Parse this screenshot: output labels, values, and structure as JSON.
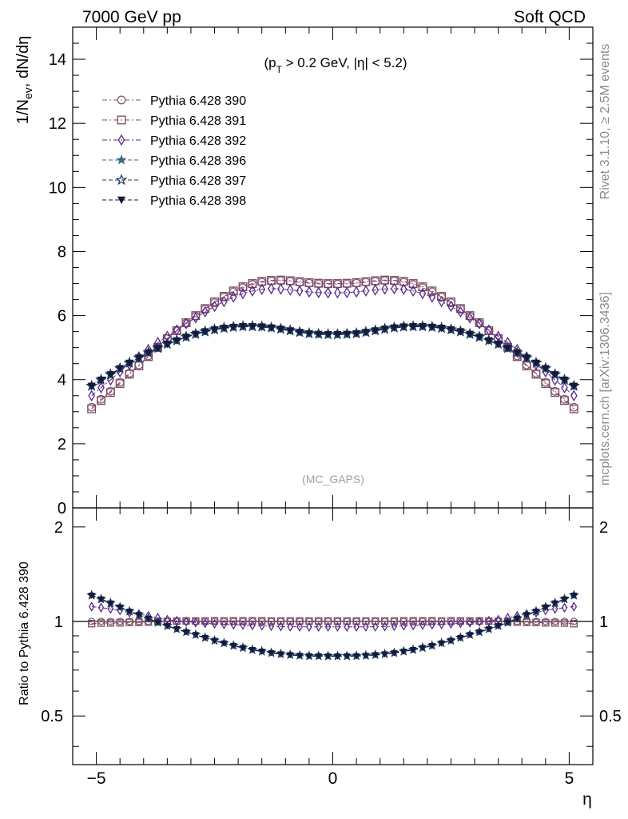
{
  "header": {
    "left": "7000 GeV pp",
    "right": "Soft QCD"
  },
  "side_labels": {
    "rivet": "Rivet 3.1.10, ≥ 2.5M events",
    "mcplots": "mcplots.cern.ch [arXiv:1306.3436]"
  },
  "chart_data": {
    "type": "scatter",
    "cut_label": "(p_T > 0.2 GeV, |η| < 5.2)",
    "watermark": "(MC_GAPS)",
    "xlabel": "η",
    "main": {
      "ylabel": "1/N_ev, dN/dη",
      "xlim": [
        -5.5,
        5.5
      ],
      "ylim": [
        0,
        15
      ],
      "yticks": [
        0,
        2,
        4,
        6,
        8,
        10,
        12,
        14
      ],
      "ytick_labels": [
        "0",
        "2",
        "4",
        "6",
        "8",
        "10",
        "12",
        "14"
      ]
    },
    "ratio": {
      "ylabel": "Ratio to Pythia 6.428 390",
      "ylim": [
        0.35,
        2.3
      ],
      "log_scale": true,
      "yticks": [
        0.5,
        1,
        2
      ],
      "ytick_labels": [
        "0.5",
        "1",
        "2"
      ]
    },
    "xticks": [
      -5,
      0,
      5
    ],
    "xtick_labels": [
      "−5",
      "0",
      "5"
    ],
    "legend_position": "top-left",
    "x": [
      -5.1,
      -4.9,
      -4.7,
      -4.5,
      -4.3,
      -4.1,
      -3.9,
      -3.7,
      -3.5,
      -3.3,
      -3.1,
      -2.9,
      -2.7,
      -2.5,
      -2.3,
      -2.1,
      -1.9,
      -1.7,
      -1.5,
      -1.3,
      -1.1,
      -0.9,
      -0.7,
      -0.5,
      -0.3,
      -0.1,
      0.1,
      0.3,
      0.5,
      0.7,
      0.9,
      1.1,
      1.3,
      1.5,
      1.7,
      1.9,
      2.1,
      2.3,
      2.5,
      2.7,
      2.9,
      3.1,
      3.3,
      3.5,
      3.7,
      3.9,
      4.1,
      4.3,
      4.5,
      4.7,
      4.9,
      5.1
    ],
    "series": [
      {
        "name": "Pythia 6.428 390",
        "color": "#8a5a78",
        "marker": "circle-open",
        "line": "dash-dot",
        "values": [
          3.14,
          3.39,
          3.64,
          3.92,
          4.2,
          4.46,
          4.74,
          5.02,
          5.28,
          5.52,
          5.76,
          5.98,
          6.2,
          6.4,
          6.58,
          6.74,
          6.87,
          6.97,
          7.04,
          7.08,
          7.09,
          7.07,
          7.04,
          7.01,
          6.99,
          6.98,
          6.98,
          6.99,
          7.01,
          7.04,
          7.07,
          7.09,
          7.08,
          7.04,
          6.97,
          6.87,
          6.74,
          6.58,
          6.4,
          6.2,
          5.98,
          5.76,
          5.52,
          5.28,
          5.02,
          4.74,
          4.46,
          4.2,
          3.92,
          3.64,
          3.39,
          3.14
        ]
      },
      {
        "name": "Pythia 6.428 391",
        "color": "#7b4a62",
        "marker": "square-open",
        "line": "dash-dot",
        "values": [
          3.09,
          3.35,
          3.6,
          3.88,
          4.17,
          4.43,
          4.72,
          5.01,
          5.28,
          5.53,
          5.78,
          6.0,
          6.22,
          6.43,
          6.6,
          6.77,
          6.9,
          7.0,
          7.07,
          7.1,
          7.11,
          7.09,
          7.06,
          7.03,
          7.01,
          7.0,
          7.0,
          7.01,
          7.03,
          7.06,
          7.09,
          7.11,
          7.1,
          7.07,
          7.0,
          6.9,
          6.77,
          6.6,
          6.43,
          6.22,
          6.0,
          5.78,
          5.53,
          5.28,
          5.01,
          4.72,
          4.43,
          4.17,
          3.88,
          3.6,
          3.35,
          3.09
        ]
      },
      {
        "name": "Pythia 6.428 392",
        "color": "#5a2a8a",
        "marker": "diamond-open",
        "line": "dash-dot",
        "values": [
          3.5,
          3.75,
          3.99,
          4.25,
          4.48,
          4.71,
          4.94,
          5.16,
          5.35,
          5.55,
          5.75,
          5.93,
          6.12,
          6.29,
          6.44,
          6.58,
          6.69,
          6.77,
          6.82,
          6.84,
          6.83,
          6.8,
          6.77,
          6.74,
          6.72,
          6.71,
          6.71,
          6.72,
          6.74,
          6.77,
          6.8,
          6.83,
          6.84,
          6.82,
          6.77,
          6.69,
          6.58,
          6.44,
          6.29,
          6.12,
          5.93,
          5.75,
          5.55,
          5.35,
          5.16,
          4.94,
          4.71,
          4.48,
          4.25,
          3.99,
          3.75,
          3.5
        ]
      },
      {
        "name": "Pythia 6.428 396",
        "color": "#3a6a80",
        "marker": "star-filled",
        "line": "dash",
        "values": [
          3.79,
          3.98,
          4.15,
          4.34,
          4.51,
          4.67,
          4.83,
          4.97,
          5.1,
          5.21,
          5.32,
          5.41,
          5.49,
          5.55,
          5.6,
          5.63,
          5.65,
          5.65,
          5.64,
          5.61,
          5.57,
          5.52,
          5.47,
          5.43,
          5.41,
          5.4,
          5.4,
          5.41,
          5.43,
          5.47,
          5.52,
          5.57,
          5.61,
          5.64,
          5.65,
          5.65,
          5.63,
          5.6,
          5.55,
          5.49,
          5.41,
          5.32,
          5.21,
          5.1,
          4.97,
          4.83,
          4.67,
          4.51,
          4.34,
          4.15,
          3.98,
          3.79
        ]
      },
      {
        "name": "Pythia 6.428 397",
        "color": "#1e3a5f",
        "marker": "star-open",
        "line": "dash",
        "values": [
          3.81,
          4.0,
          4.17,
          4.36,
          4.53,
          4.69,
          4.85,
          4.99,
          5.12,
          5.23,
          5.34,
          5.43,
          5.51,
          5.57,
          5.62,
          5.65,
          5.67,
          5.67,
          5.66,
          5.63,
          5.59,
          5.54,
          5.49,
          5.45,
          5.43,
          5.42,
          5.42,
          5.43,
          5.45,
          5.49,
          5.54,
          5.59,
          5.63,
          5.66,
          5.67,
          5.67,
          5.65,
          5.62,
          5.57,
          5.51,
          5.43,
          5.34,
          5.23,
          5.12,
          4.99,
          4.85,
          4.69,
          4.53,
          4.36,
          4.17,
          4.0,
          3.81
        ]
      },
      {
        "name": "Pythia 6.428 398",
        "color": "#141a3c",
        "marker": "triangle-down-filled",
        "line": "dash",
        "values": [
          3.8,
          3.99,
          4.16,
          4.35,
          4.52,
          4.68,
          4.84,
          4.98,
          5.11,
          5.22,
          5.33,
          5.42,
          5.5,
          5.56,
          5.61,
          5.64,
          5.66,
          5.66,
          5.65,
          5.62,
          5.58,
          5.53,
          5.48,
          5.44,
          5.42,
          5.41,
          5.41,
          5.42,
          5.44,
          5.48,
          5.53,
          5.58,
          5.62,
          5.65,
          5.66,
          5.66,
          5.64,
          5.61,
          5.56,
          5.5,
          5.42,
          5.33,
          5.22,
          5.11,
          4.98,
          4.84,
          4.68,
          4.52,
          4.35,
          4.16,
          3.99,
          3.8
        ]
      }
    ]
  }
}
